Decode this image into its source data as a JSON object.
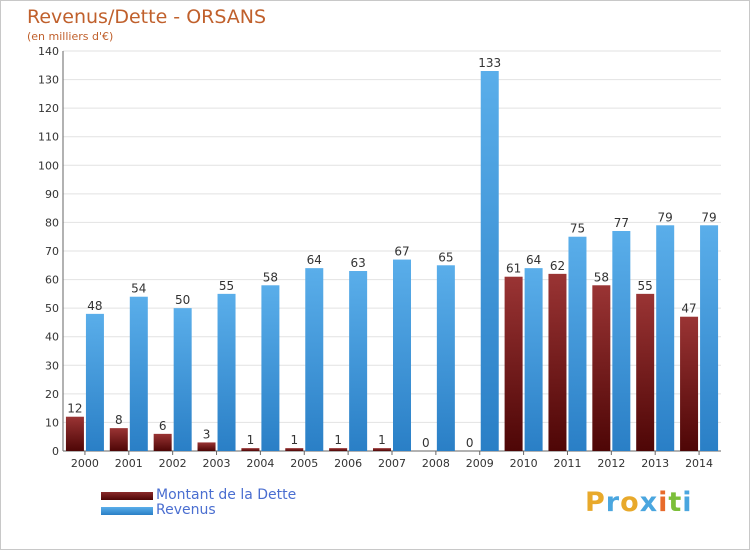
{
  "title": "Revenus/Dette - ORSANS",
  "subtitle": "(en milliers d'€)",
  "logo": {
    "letters": [
      "P",
      "r",
      "o",
      "x",
      "i",
      "t",
      "i"
    ],
    "colors": [
      "#e8a92b",
      "#4aa6df",
      "#e8a92b",
      "#4aa6df",
      "#e86a2b",
      "#7cbf3a",
      "#4aa6df"
    ]
  },
  "chart_data": {
    "type": "bar",
    "title": "Revenus/Dette - ORSANS",
    "ylabel": "(en milliers d'€)",
    "xlabel": "",
    "ylim": [
      0,
      140
    ],
    "yticks": [
      0,
      10,
      20,
      30,
      40,
      50,
      60,
      70,
      80,
      90,
      100,
      110,
      120,
      130,
      140
    ],
    "grid": true,
    "legend_position": "bottom-left",
    "categories": [
      "2000",
      "2001",
      "2002",
      "2003",
      "2004",
      "2005",
      "2006",
      "2007",
      "2008",
      "2009",
      "2010",
      "2011",
      "2012",
      "2013",
      "2014"
    ],
    "series": [
      {
        "name": "Montant de la Dette",
        "color": "#6e1414",
        "values": [
          12,
          8,
          6,
          3,
          1,
          1,
          1,
          1,
          0,
          0,
          61,
          62,
          58,
          55,
          47
        ]
      },
      {
        "name": "Revenus",
        "color": "#3d95dc",
        "values": [
          48,
          54,
          50,
          55,
          58,
          64,
          63,
          67,
          65,
          133,
          64,
          75,
          77,
          79,
          79
        ]
      }
    ]
  }
}
